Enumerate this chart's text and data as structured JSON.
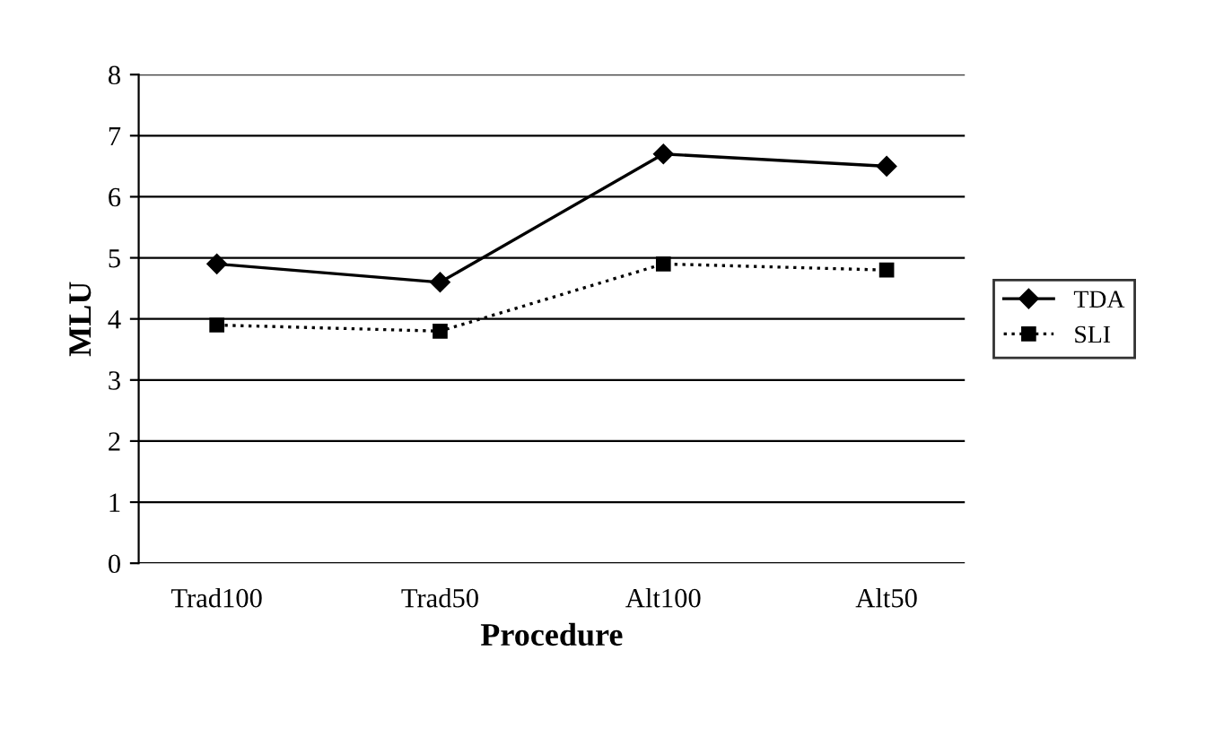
{
  "chart_data": {
    "type": "line",
    "xlabel": "Procedure",
    "ylabel": "MLU",
    "categories": [
      "Trad100",
      "Trad50",
      "Alt100",
      "Alt50"
    ],
    "series": [
      {
        "name": "TDA",
        "color": "#000000",
        "values": [
          4.9,
          4.6,
          6.7,
          6.5
        ],
        "marker": "diamond",
        "line_style": "solid"
      },
      {
        "name": "SLI",
        "color": "#000000",
        "values": [
          3.9,
          3.8,
          4.9,
          4.8
        ],
        "marker": "square",
        "line_style": "dotted"
      }
    ],
    "ylim": [
      0,
      8
    ],
    "yticks": [
      0,
      1,
      2,
      3,
      4,
      5,
      6,
      7,
      8
    ],
    "grid": "y",
    "legend": "right"
  }
}
